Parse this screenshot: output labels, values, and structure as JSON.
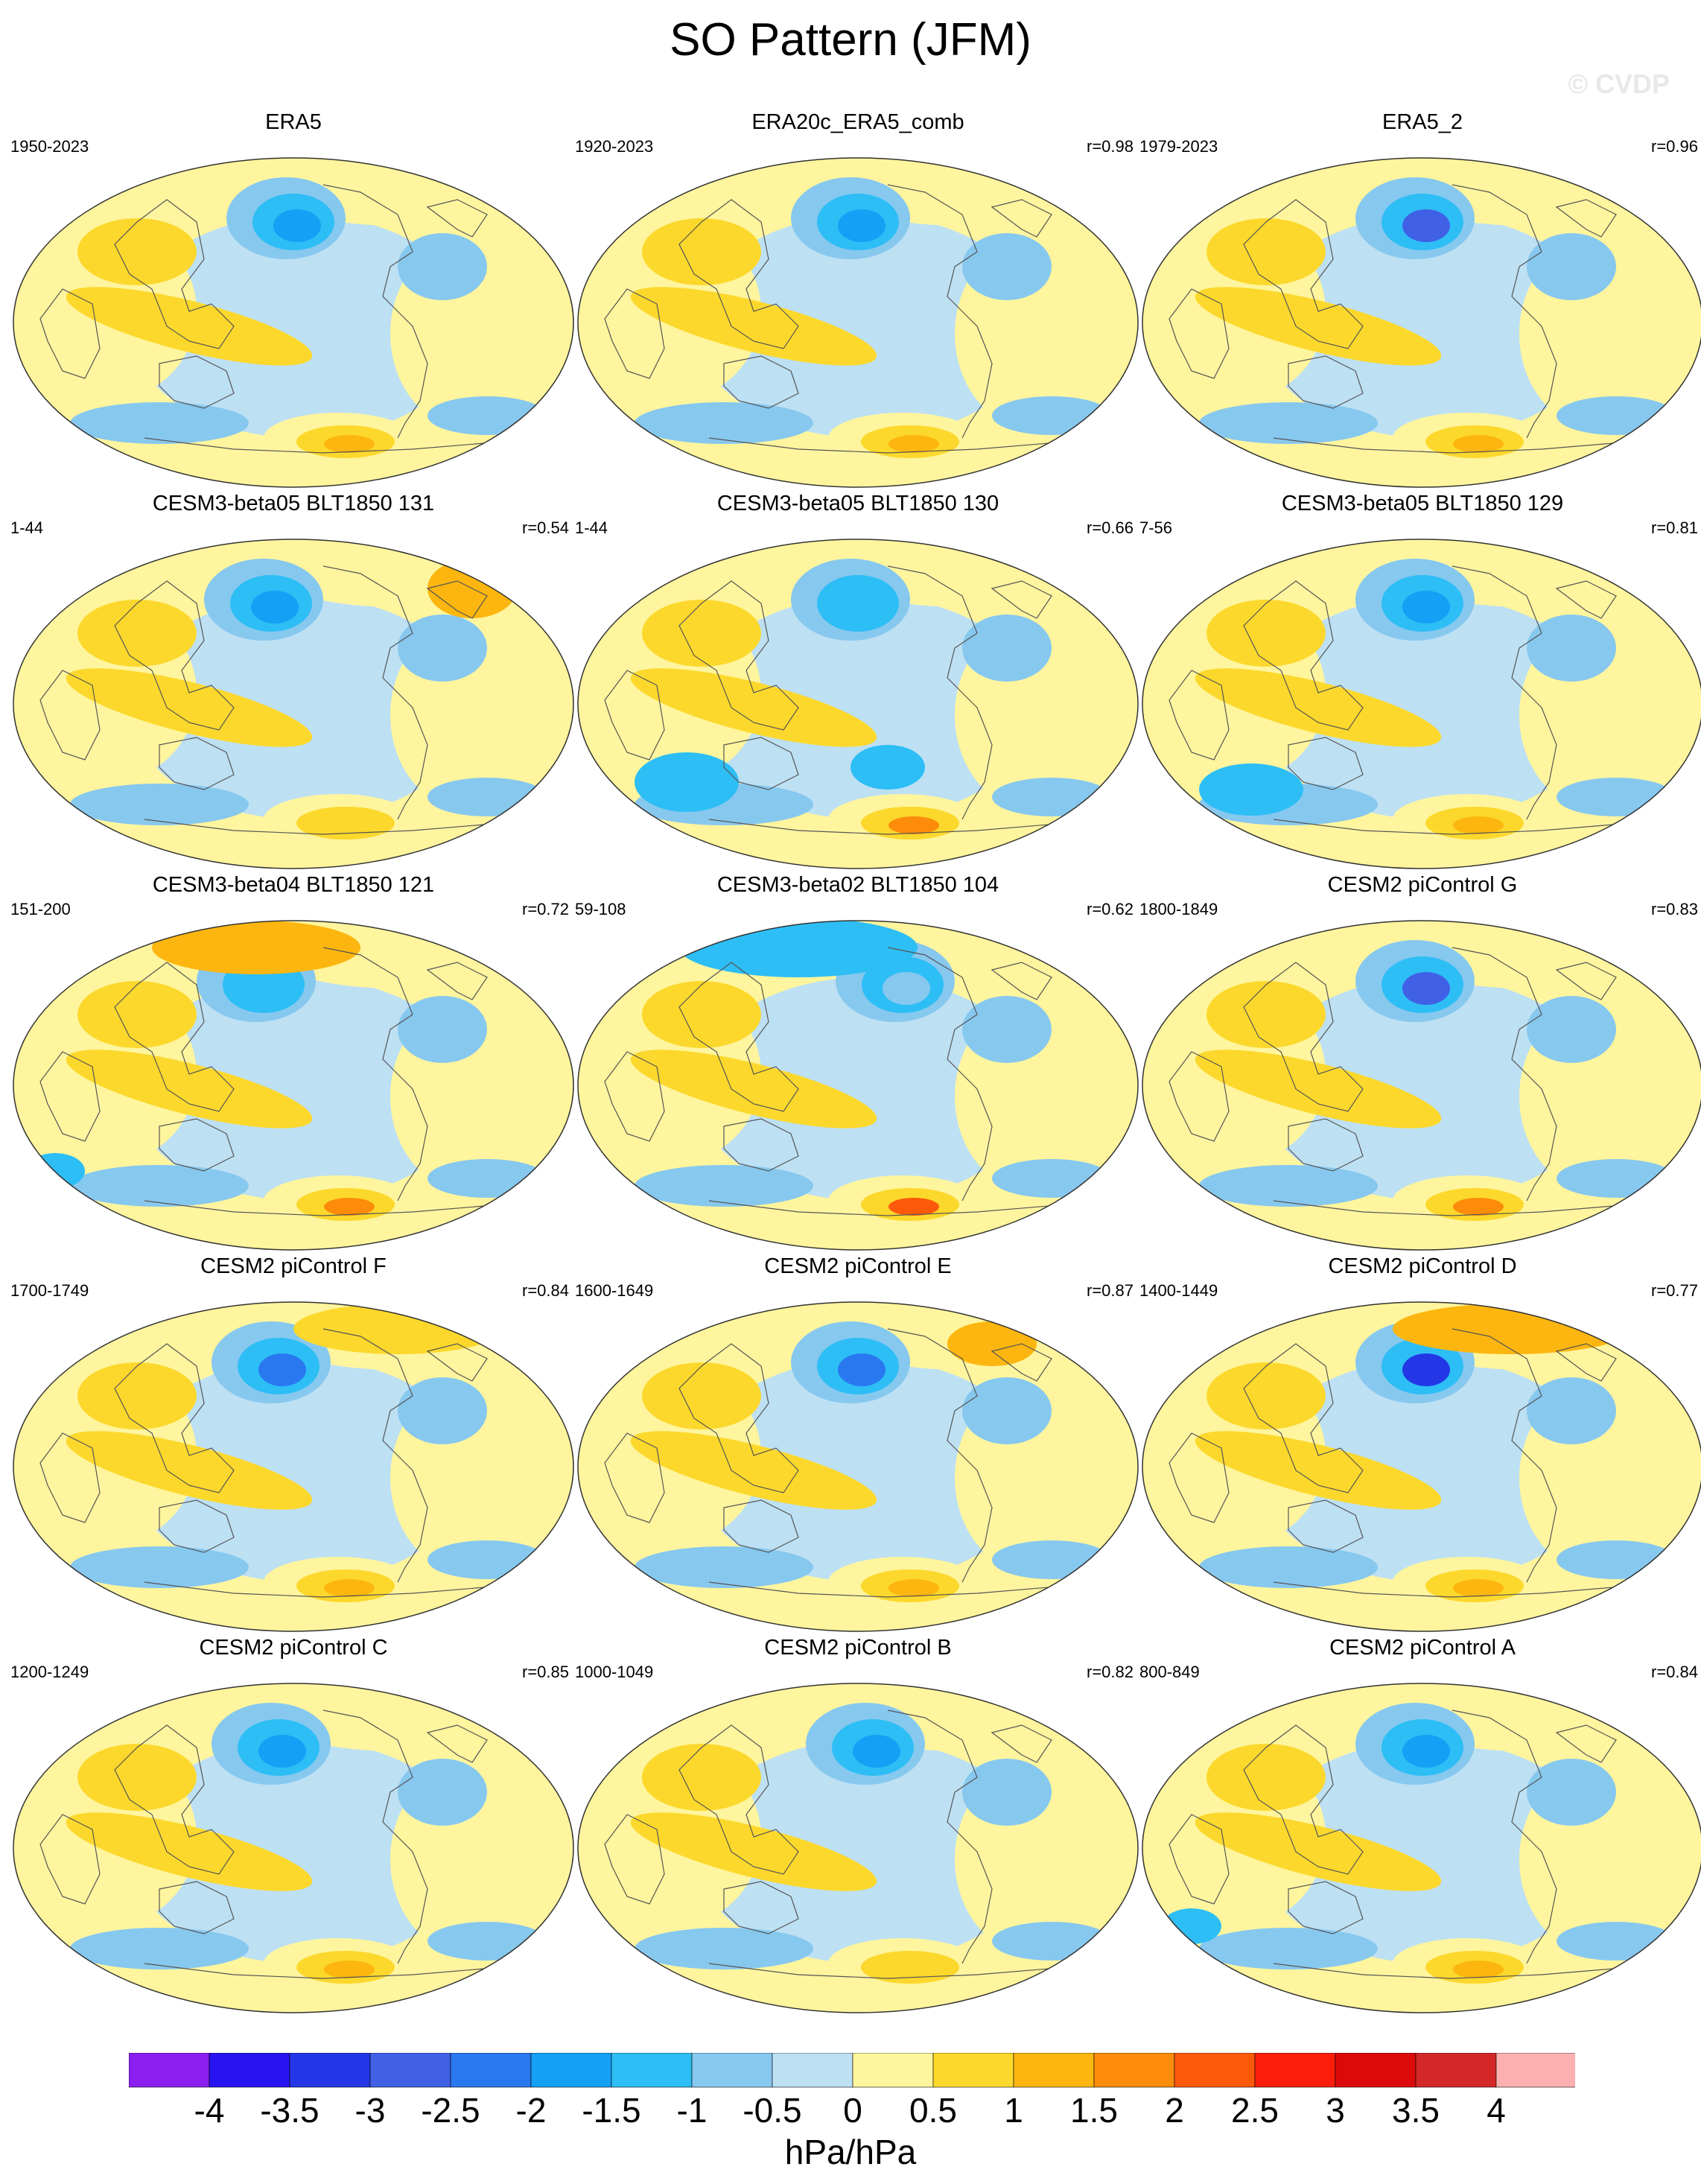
{
  "title": "SO Pattern (JFM)",
  "watermark": "© CVDP",
  "panels": [
    {
      "title": "ERA5",
      "years": "1950-2023",
      "corr": ""
    },
    {
      "title": "ERA20c_ERA5_comb",
      "years": "1920-2023",
      "corr": "r=0.98"
    },
    {
      "title": "ERA5_2",
      "years": "1979-2023",
      "corr": "r=0.96"
    },
    {
      "title": "CESM3-beta05 BLT1850 131",
      "years": "1-44",
      "corr": "r=0.54"
    },
    {
      "title": "CESM3-beta05 BLT1850 130",
      "years": "1-44",
      "corr": "r=0.66"
    },
    {
      "title": "CESM3-beta05 BLT1850 129",
      "years": "7-56",
      "corr": "r=0.81"
    },
    {
      "title": "CESM3-beta04 BLT1850 121",
      "years": "151-200",
      "corr": "r=0.72"
    },
    {
      "title": "CESM3-beta02 BLT1850 104",
      "years": "59-108",
      "corr": "r=0.62"
    },
    {
      "title": "CESM2 piControl G",
      "years": "1800-1849",
      "corr": "r=0.83"
    },
    {
      "title": "CESM2 piControl F",
      "years": "1700-1749",
      "corr": "r=0.84"
    },
    {
      "title": "CESM2 piControl E",
      "years": "1600-1649",
      "corr": "r=0.87"
    },
    {
      "title": "CESM2 piControl D",
      "years": "1400-1449",
      "corr": "r=0.77"
    },
    {
      "title": "CESM2 piControl C",
      "years": "1200-1249",
      "corr": "r=0.85"
    },
    {
      "title": "CESM2 piControl B",
      "years": "1000-1049",
      "corr": "r=0.82"
    },
    {
      "title": "CESM2 piControl A",
      "years": "800-849",
      "corr": "r=0.84"
    }
  ],
  "colorbar": {
    "labels": [
      "-4",
      "-3.5",
      "-3",
      "-2.5",
      "-2",
      "-1.5",
      "-1",
      "-0.5",
      "0",
      "0.5",
      "1",
      "1.5",
      "2",
      "2.5",
      "3",
      "3.5",
      "4"
    ],
    "colors": [
      "#8b1ef0",
      "#2814f0",
      "#2337e6",
      "#4060e6",
      "#2a78f0",
      "#14a0f5",
      "#2dbef5",
      "#87c8ef",
      "#bde0f3",
      "#fff59e",
      "#fcd82c",
      "#fcb60f",
      "#fc8c0a",
      "#fc5a0a",
      "#fc1e0a",
      "#dc0a0a",
      "#d42828",
      "#fcb0b0"
    ],
    "units": "hPa/hPa"
  }
}
